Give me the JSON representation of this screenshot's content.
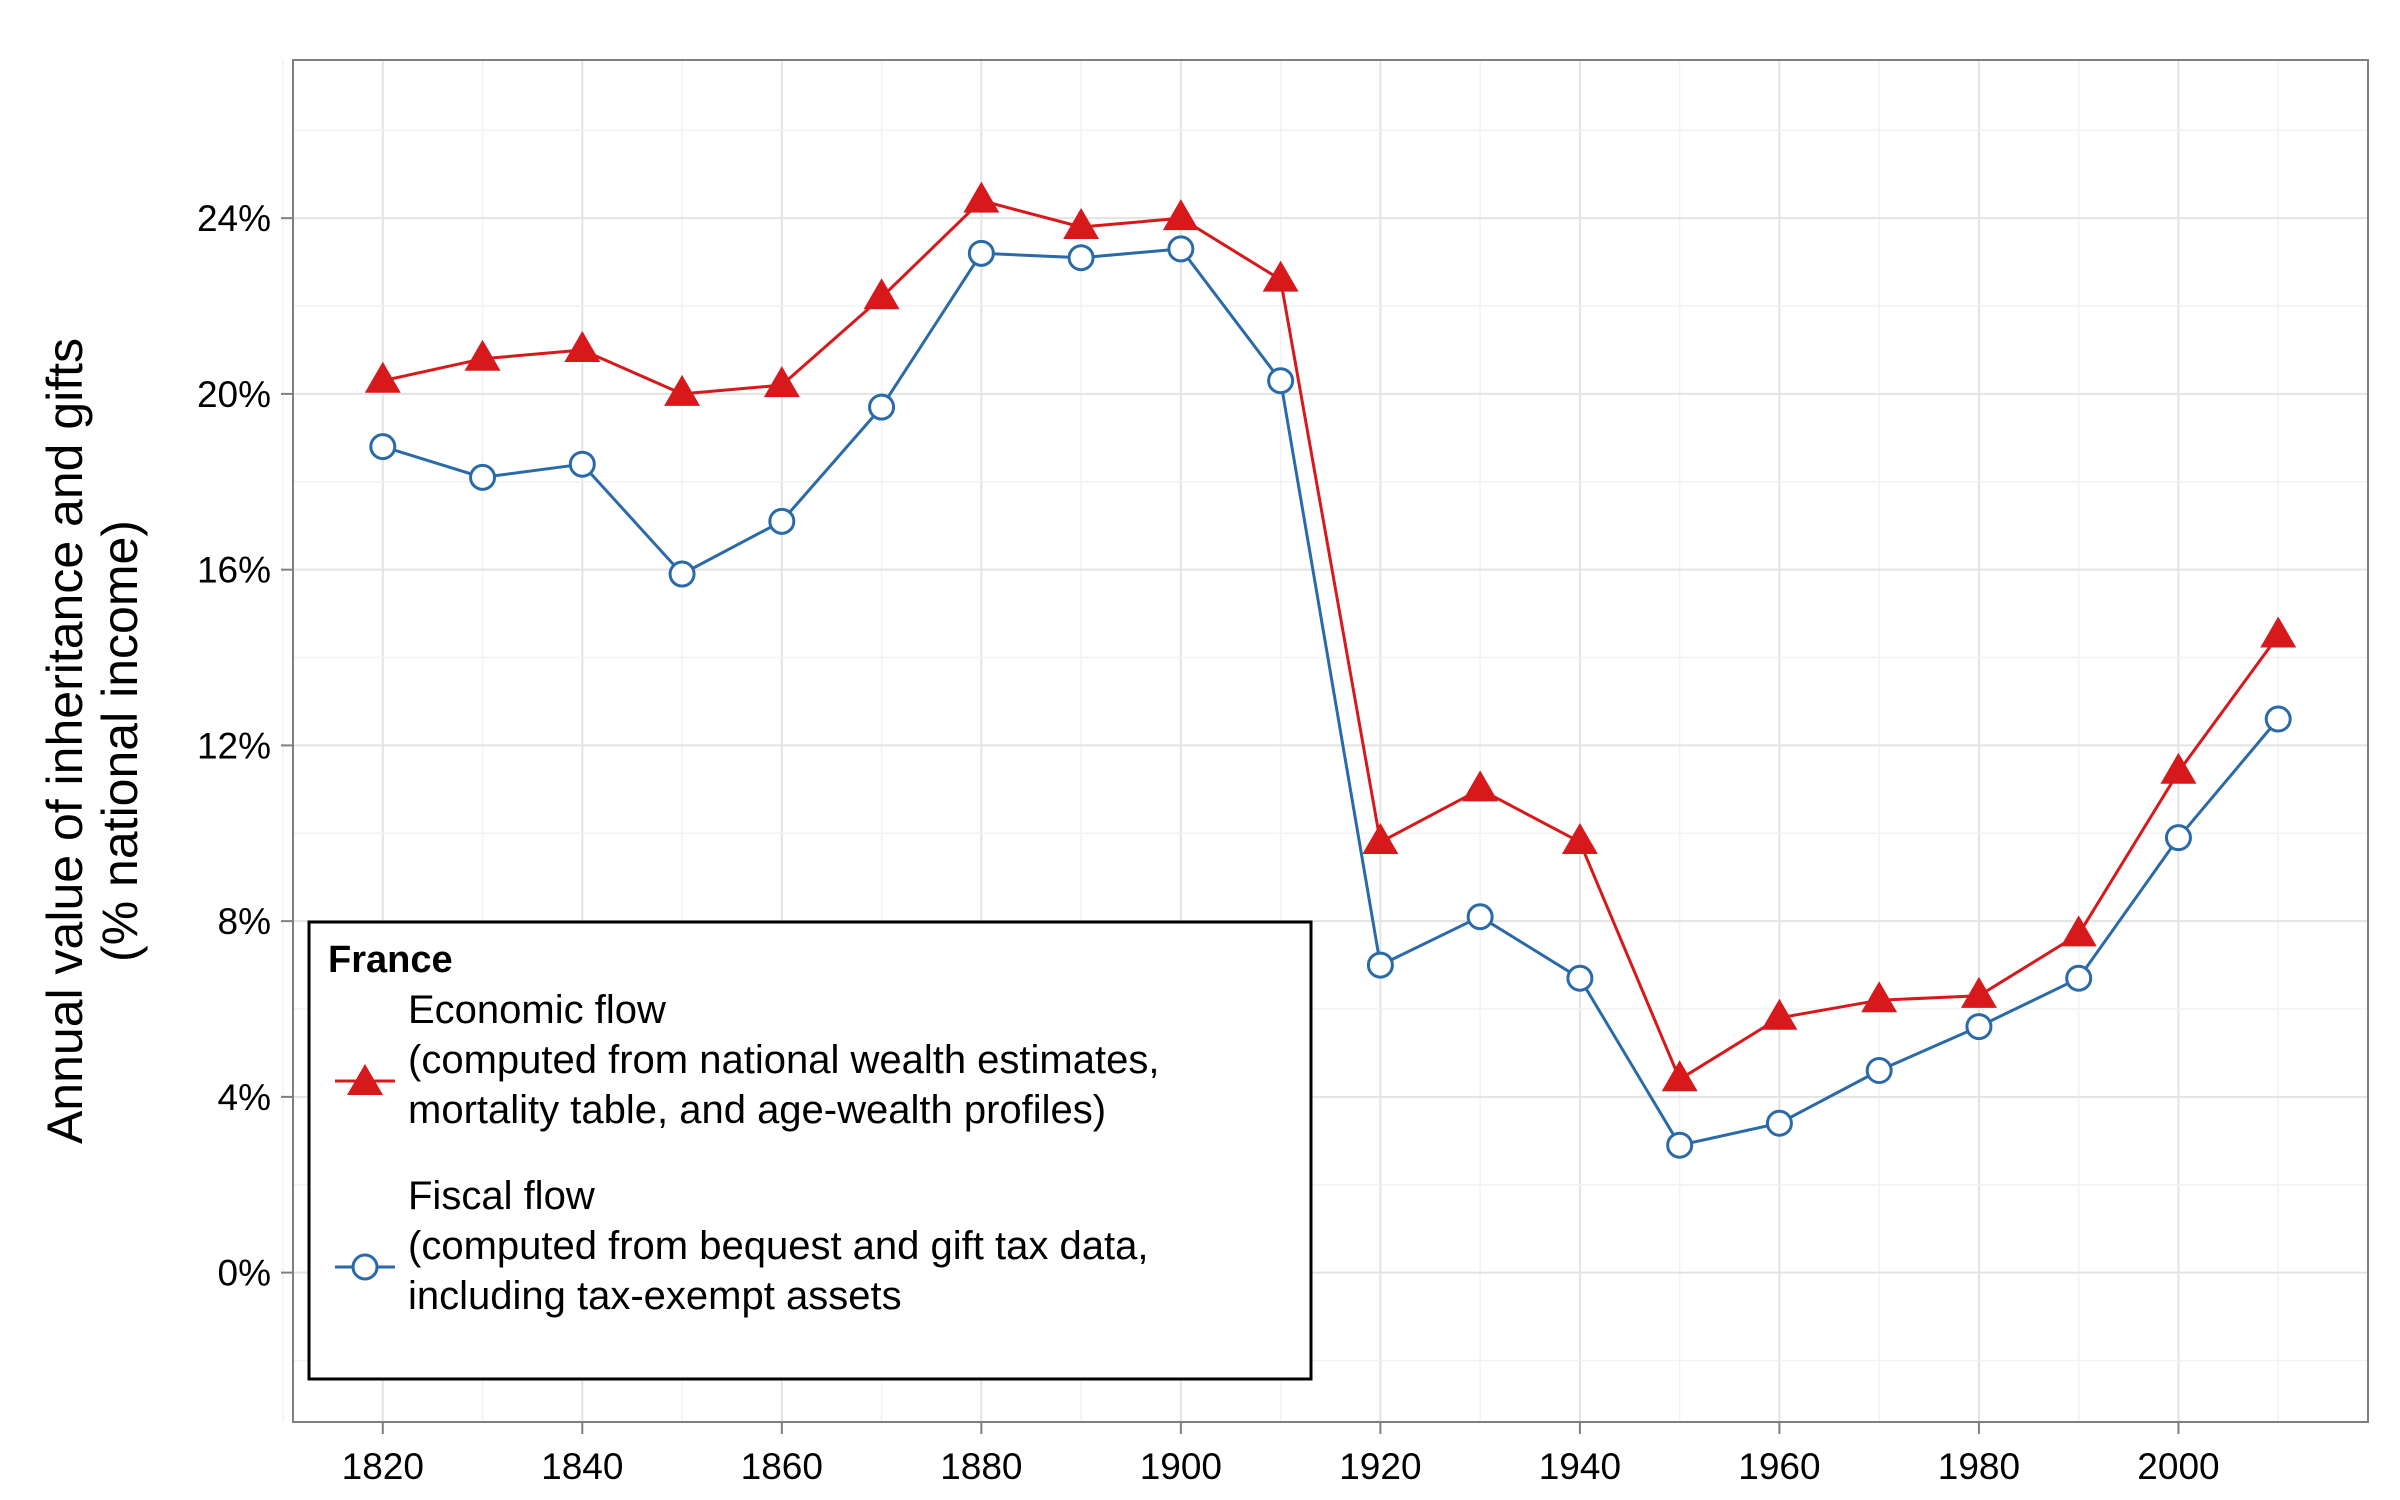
{
  "chart_data": {
    "type": "line",
    "title": "",
    "xlabel": "",
    "ylabel": [
      "Annual value of inheritance and gifts",
      "(% national income)"
    ],
    "x": [
      1820,
      1830,
      1840,
      1850,
      1860,
      1870,
      1880,
      1890,
      1900,
      1910,
      1920,
      1930,
      1940,
      1950,
      1960,
      1970,
      1980,
      1990,
      2000,
      2010
    ],
    "xlim": [
      1811,
      2019
    ],
    "ylim": [
      -3.4,
      27.6
    ],
    "xticks": [
      1820,
      1840,
      1860,
      1880,
      1900,
      1920,
      1940,
      1960,
      1980,
      2000
    ],
    "yticks": [
      0,
      4,
      8,
      12,
      16,
      20,
      24
    ],
    "ytick_labels": [
      "0%",
      "4%",
      "8%",
      "12%",
      "16%",
      "20%",
      "24%"
    ],
    "grid": true,
    "legend": {
      "title": "France",
      "position": "bottom-left",
      "entries": [
        {
          "series": 0,
          "lines": [
            "Economic flow",
            "(computed from national wealth estimates,",
            "mortality table, and age-wealth profiles)"
          ]
        },
        {
          "series": 1,
          "lines": [
            "Fiscal flow",
            "(computed from bequest and gift tax data,",
            "including tax-exempt assets"
          ]
        }
      ]
    },
    "series": [
      {
        "marker": "triangle",
        "color": "#d7191c",
        "values": [
          20.3,
          20.8,
          21.0,
          20.0,
          20.2,
          22.2,
          24.4,
          23.8,
          24.0,
          22.6,
          9.8,
          11.0,
          9.8,
          4.4,
          5.8,
          6.2,
          6.3,
          7.7,
          11.4,
          14.5
        ]
      },
      {
        "marker": "circle-open",
        "color": "#2b6aa8",
        "values": [
          18.8,
          18.1,
          18.4,
          15.9,
          17.1,
          19.7,
          23.2,
          23.1,
          23.3,
          20.3,
          7.0,
          8.1,
          6.7,
          2.9,
          3.4,
          4.6,
          5.6,
          6.7,
          9.9,
          12.6
        ]
      }
    ]
  }
}
